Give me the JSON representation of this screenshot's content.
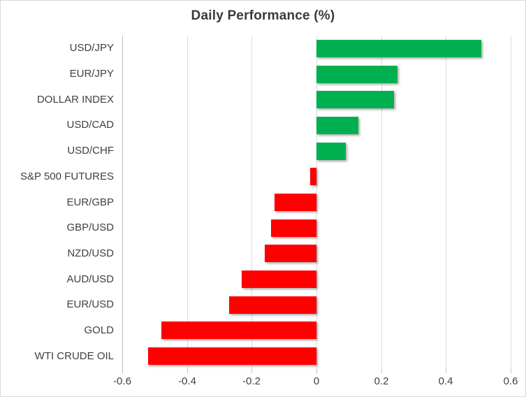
{
  "title": "Daily Performance (%)",
  "chart_data": {
    "type": "bar",
    "orientation": "horizontal",
    "title": "Daily Performance (%)",
    "categories": [
      "USD/JPY",
      "EUR/JPY",
      "DOLLAR INDEX",
      "USD/CAD",
      "USD/CHF",
      "S&P 500 FUTURES",
      "EUR/GBP",
      "GBP/USD",
      "NZD/USD",
      "AUD/USD",
      "EUR/USD",
      "GOLD",
      "WTI CRUDE OIL"
    ],
    "values": [
      0.51,
      0.25,
      0.24,
      0.13,
      0.09,
      -0.02,
      -0.13,
      -0.14,
      -0.16,
      -0.23,
      -0.27,
      -0.48,
      -0.52
    ],
    "xlim": [
      -0.6,
      0.6
    ],
    "xticks": [
      -0.6,
      -0.4,
      -0.2,
      0,
      0.2,
      0.4,
      0.6
    ],
    "xtick_labels": [
      "-0.6",
      "-0.4",
      "-0.2",
      "0",
      "0.2",
      "0.4",
      "0.6"
    ],
    "xlabel": "",
    "ylabel": "",
    "grid": "vertical",
    "legend": "none",
    "colors": {
      "positive": "#00B050",
      "negative": "#FF0000"
    }
  }
}
